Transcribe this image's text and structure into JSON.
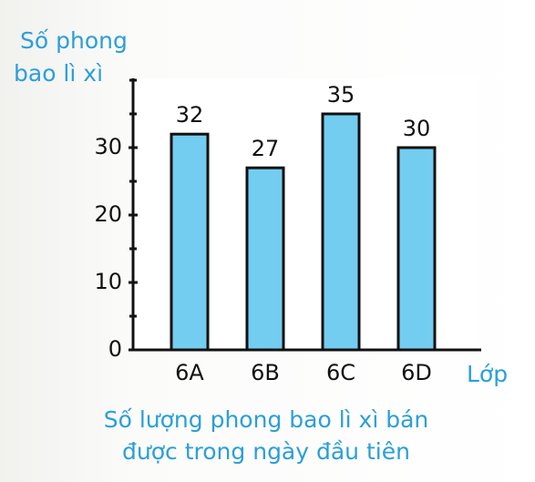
{
  "chart_data": {
    "type": "bar",
    "title_lines": [
      "Số lượng phong bao lì xì bán",
      "được trong ngày đầu tiên"
    ],
    "y_label_lines": [
      "Số phong",
      "bao lì xì"
    ],
    "x_label": "Lớp",
    "categories": [
      "6A",
      "6B",
      "6C",
      "6D"
    ],
    "values": [
      32,
      27,
      35,
      30
    ],
    "color": "#72cdf0",
    "ylim": [
      0,
      40
    ],
    "yticks": [
      0,
      10,
      20,
      30
    ],
    "minor_yticks": [
      5,
      15,
      25,
      35,
      40
    ]
  }
}
